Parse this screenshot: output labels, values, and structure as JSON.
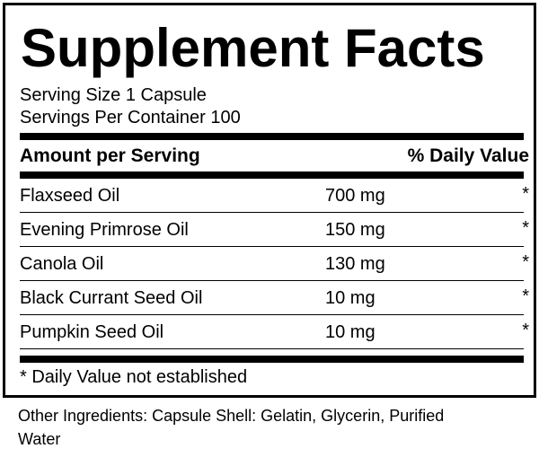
{
  "title": "Supplement Facts",
  "serving_size": "Serving Size 1 Capsule",
  "servings_per_container": "Servings Per Container 100",
  "header": {
    "amount": "Amount per Serving",
    "daily_value": "% Daily Value"
  },
  "rows": [
    {
      "name": "Flaxseed Oil",
      "amount": "700 mg",
      "dv": "*"
    },
    {
      "name": "Evening Primrose Oil",
      "amount": "150 mg",
      "dv": "*"
    },
    {
      "name": "Canola Oil",
      "amount": "130 mg",
      "dv": "*"
    },
    {
      "name": "Black Currant Seed Oil",
      "amount": "10 mg",
      "dv": "*"
    },
    {
      "name": "Pumpkin Seed Oil",
      "amount": "10 mg",
      "dv": "*"
    }
  ],
  "footnote": "* Daily Value not established",
  "other_ingredients_line1": "Other Ingredients: Capsule Shell: Gelatin, Glycerin, Purified",
  "other_ingredients_line2": "Water"
}
